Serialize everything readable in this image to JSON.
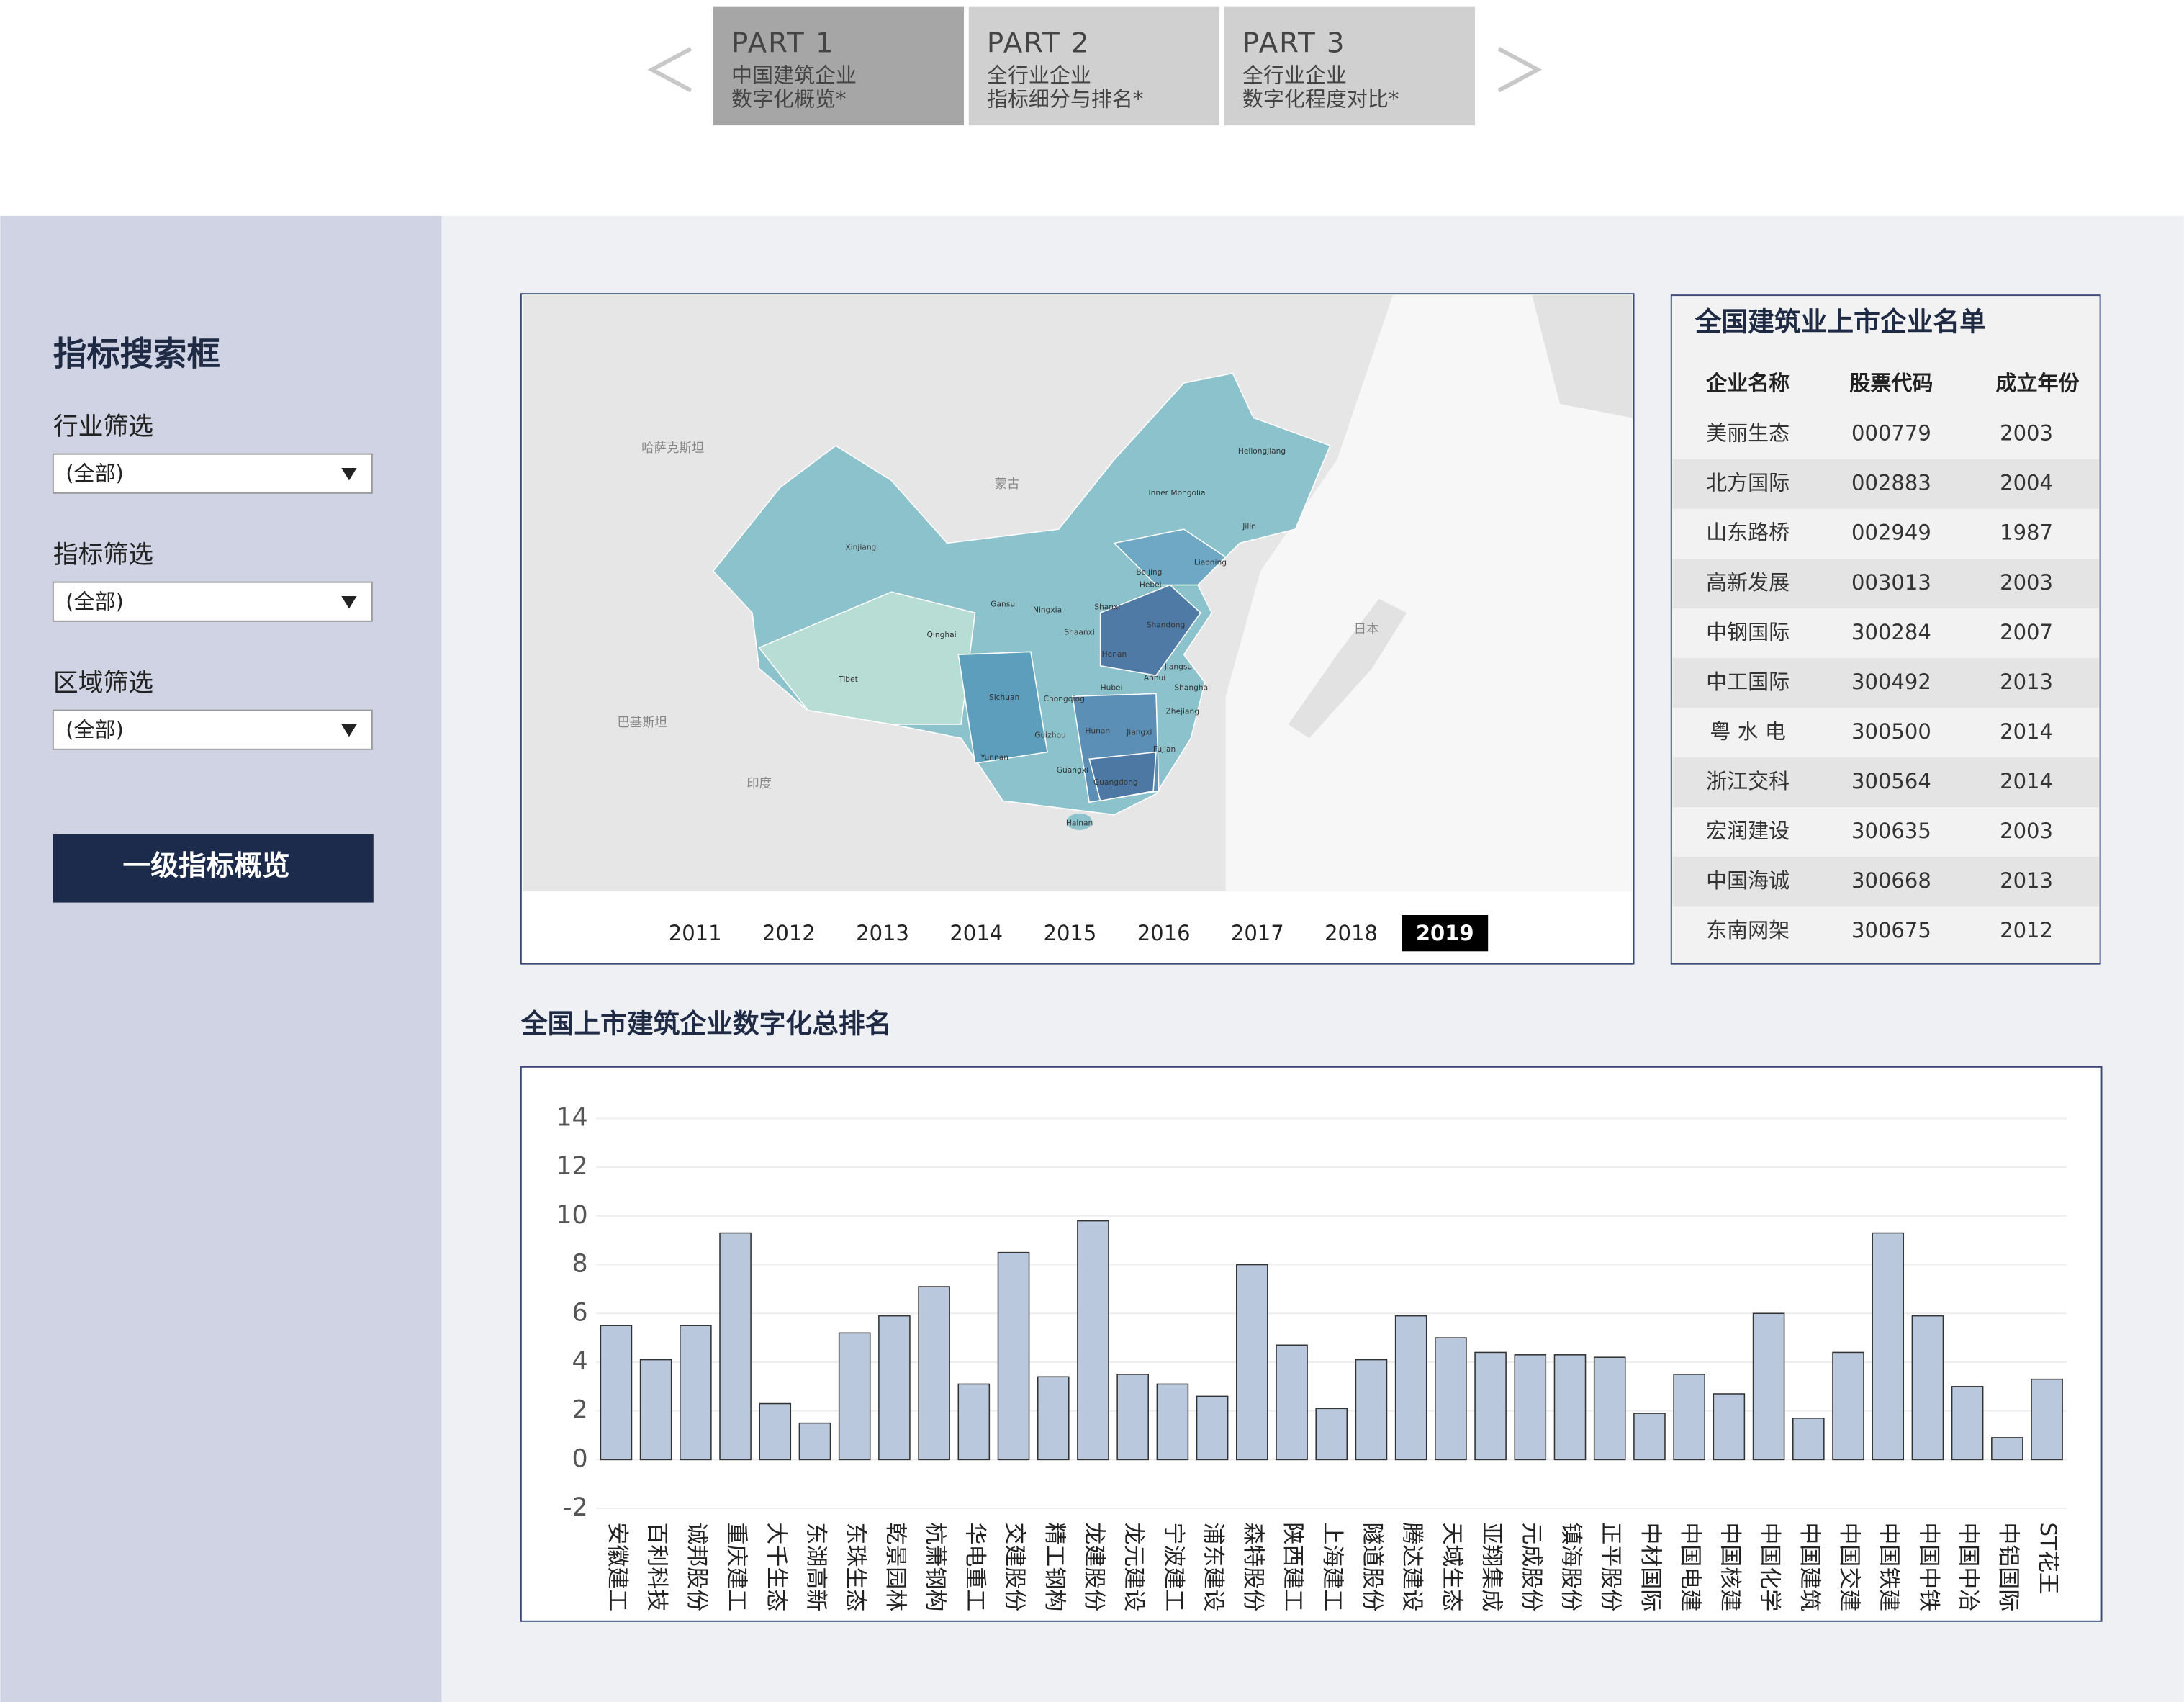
{
  "nav": {
    "tabs": [
      {
        "part": "PART 1",
        "lines": [
          "中国建筑企业",
          "数字化概览*"
        ],
        "active": true
      },
      {
        "part": "PART 2",
        "lines": [
          "全行业企业",
          "指标细分与排名*"
        ],
        "active": false
      },
      {
        "part": "PART 3",
        "lines": [
          "全行业企业",
          "数字化程度对比*"
        ],
        "active": false
      }
    ]
  },
  "sidebar": {
    "title": "指标搜索框",
    "filters": [
      {
        "label": "行业筛选",
        "value": "(全部)"
      },
      {
        "label": "指标筛选",
        "value": "(全部)"
      },
      {
        "label": "区域筛选",
        "value": "(全部)"
      }
    ],
    "button": "一级指标概览"
  },
  "map": {
    "labels": [
      "哈萨克斯坦",
      "蒙古",
      "日本",
      "巴基斯坦",
      "印度",
      "Xinjiang",
      "Tibet",
      "Qinghai",
      "Gansu",
      "Inner Mongolia",
      "Heilongjiang",
      "Jilin",
      "Liaoning",
      "Beijing",
      "Hebei",
      "Shanxi",
      "Shaanxi",
      "Ningxia",
      "Henan",
      "Shandong",
      "Jiangsu",
      "Anhui",
      "Hubei",
      "Shanghai",
      "Zhejiang",
      "Sichuan",
      "Chongqing",
      "Hunan",
      "Jiangxi",
      "Fujian",
      "Guizhou",
      "Yunnan",
      "Guangxi",
      "Guangdong",
      "Hainan"
    ],
    "years": [
      2011,
      2012,
      2013,
      2014,
      2015,
      2016,
      2017,
      2018,
      2019
    ],
    "selected_year": 2019
  },
  "table": {
    "title": "全国建筑业上市企业名单",
    "columns": [
      "企业名称",
      "股票代码",
      "成立年份"
    ],
    "rows": [
      [
        "美丽生态",
        "000779",
        2003
      ],
      [
        "北方国际",
        "002883",
        2004
      ],
      [
        "山东路桥",
        "002949",
        1987
      ],
      [
        "高新发展",
        "003013",
        2003
      ],
      [
        "中钢国际",
        "300284",
        2007
      ],
      [
        "中工国际",
        "300492",
        2013
      ],
      [
        "粤 水 电",
        "300500",
        2014
      ],
      [
        "浙江交科",
        "300564",
        2014
      ],
      [
        "宏润建设",
        "300635",
        2003
      ],
      [
        "中国海诚",
        "300668",
        2013
      ],
      [
        "东南网架",
        "300675",
        2012
      ]
    ]
  },
  "chart_data": {
    "type": "bar",
    "title": "全国上市建筑企业数字化总排名",
    "categories": [
      "安徽建工",
      "百利科技",
      "诚邦股份",
      "重庆建工",
      "大千生态",
      "东湖高新",
      "东珠生态",
      "乾景园林",
      "杭萧钢构",
      "华电重工",
      "交建股份",
      "精工钢构",
      "龙建股份",
      "龙元建设",
      "宁波建工",
      "浦东建设",
      "森特股份",
      "陕西建工",
      "上海建工",
      "隧道股份",
      "腾达建设",
      "天域生态",
      "亚翔集成",
      "元成股份",
      "镇海股份",
      "正平股份",
      "中材国际",
      "中国电建",
      "中国核建",
      "中国化学",
      "中国建筑",
      "中国交建",
      "中国铁建",
      "中国中铁",
      "中国中冶",
      "中铝国际",
      "ST花王"
    ],
    "values": [
      5.5,
      4.1,
      5.5,
      9.3,
      2.3,
      1.5,
      5.2,
      5.9,
      7.1,
      3.1,
      8.5,
      3.4,
      9.8,
      3.5,
      3.1,
      2.6,
      8.0,
      4.7,
      2.1,
      4.1,
      5.9,
      5.0,
      4.4,
      4.3,
      4.3,
      4.2,
      1.9,
      3.5,
      2.7,
      6.0,
      1.7,
      4.4,
      9.3,
      5.9,
      3.0,
      0.9,
      3.3
    ],
    "color": "#b9c8dc",
    "ylim": [
      -2.5,
      15
    ],
    "yticks": [
      -2,
      0,
      2,
      4,
      6,
      8,
      10,
      12,
      14
    ],
    "grid": true
  }
}
